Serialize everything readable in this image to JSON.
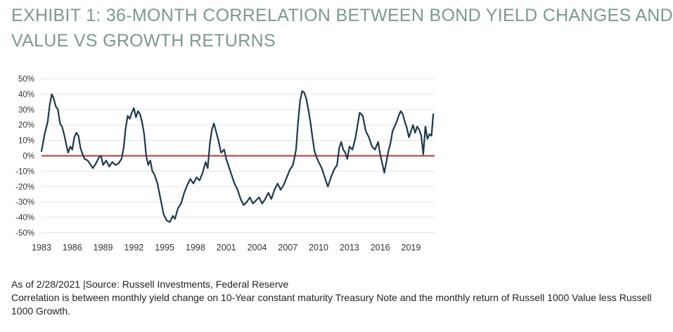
{
  "title": {
    "line1": "EXHIBIT 1: 36-MONTH CORRELATION BETWEEN BOND YIELD CHANGES AND",
    "line2": "VALUE VS GROWTH RETURNS"
  },
  "colors": {
    "title": "#7a9a8c",
    "series": "#1b3a4b",
    "zero_line": "#b03a3a",
    "grid": "#e3e3e3"
  },
  "chart_data": {
    "type": "line",
    "title": "",
    "xlabel": "",
    "ylabel": "",
    "x_start": 1983.0,
    "x_end": 2021.17,
    "xlim": [
      1983.0,
      2021.3
    ],
    "ylim": [
      -50,
      50
    ],
    "grid": true,
    "y_ticks": [
      50,
      40,
      30,
      20,
      10,
      0,
      -10,
      -20,
      -30,
      -40,
      -50
    ],
    "y_tick_labels": [
      "50%",
      "40%",
      "30%",
      "20%",
      "10%",
      "0%",
      "-10%",
      "-20%",
      "-30%",
      "-40%",
      "-50%"
    ],
    "x_ticks": [
      1983,
      1986,
      1989,
      1992,
      1995,
      1998,
      2001,
      2004,
      2007,
      2010,
      2013,
      2016,
      2019
    ],
    "x_tick_labels": [
      "1983",
      "1986",
      "1989",
      "1992",
      "1995",
      "1998",
      "2001",
      "2004",
      "2007",
      "2010",
      "2013",
      "2016",
      "2019"
    ],
    "reference_line": 0,
    "series": [
      {
        "points": [
          [
            1983.0,
            3
          ],
          [
            1983.3,
            14
          ],
          [
            1983.6,
            22
          ],
          [
            1983.8,
            33
          ],
          [
            1984.0,
            40
          ],
          [
            1984.2,
            37
          ],
          [
            1984.4,
            32
          ],
          [
            1984.6,
            30
          ],
          [
            1984.8,
            21
          ],
          [
            1985.0,
            19
          ],
          [
            1985.2,
            14
          ],
          [
            1985.4,
            8
          ],
          [
            1985.6,
            2
          ],
          [
            1985.8,
            6
          ],
          [
            1986.0,
            4
          ],
          [
            1986.2,
            12
          ],
          [
            1986.4,
            15
          ],
          [
            1986.6,
            13
          ],
          [
            1986.8,
            5
          ],
          [
            1987.0,
            1
          ],
          [
            1987.2,
            -2
          ],
          [
            1987.5,
            -3
          ],
          [
            1987.8,
            -6
          ],
          [
            1988.0,
            -8
          ],
          [
            1988.3,
            -5
          ],
          [
            1988.6,
            -1
          ],
          [
            1988.8,
            0
          ],
          [
            1989.0,
            -6
          ],
          [
            1989.3,
            -3
          ],
          [
            1989.6,
            -7
          ],
          [
            1989.9,
            -4
          ],
          [
            1990.2,
            -6
          ],
          [
            1990.5,
            -5
          ],
          [
            1990.8,
            -2
          ],
          [
            1991.0,
            5
          ],
          [
            1991.2,
            18
          ],
          [
            1991.4,
            26
          ],
          [
            1991.6,
            24
          ],
          [
            1991.8,
            28
          ],
          [
            1992.0,
            31
          ],
          [
            1992.2,
            25
          ],
          [
            1992.4,
            29
          ],
          [
            1992.6,
            27
          ],
          [
            1992.8,
            22
          ],
          [
            1993.0,
            14
          ],
          [
            1993.2,
            0
          ],
          [
            1993.4,
            -6
          ],
          [
            1993.6,
            -3
          ],
          [
            1993.8,
            -10
          ],
          [
            1994.0,
            -12
          ],
          [
            1994.3,
            -18
          ],
          [
            1994.6,
            -28
          ],
          [
            1994.9,
            -38
          ],
          [
            1995.2,
            -42
          ],
          [
            1995.5,
            -43
          ],
          [
            1995.8,
            -39
          ],
          [
            1996.0,
            -41
          ],
          [
            1996.3,
            -34
          ],
          [
            1996.6,
            -31
          ],
          [
            1996.9,
            -24
          ],
          [
            1997.2,
            -19
          ],
          [
            1997.5,
            -15
          ],
          [
            1997.8,
            -18
          ],
          [
            1998.1,
            -14
          ],
          [
            1998.4,
            -16
          ],
          [
            1998.7,
            -11
          ],
          [
            1999.0,
            -4
          ],
          [
            1999.2,
            -8
          ],
          [
            1999.4,
            8
          ],
          [
            1999.6,
            17
          ],
          [
            1999.8,
            21
          ],
          [
            2000.0,
            16
          ],
          [
            2000.2,
            11
          ],
          [
            2000.5,
            2
          ],
          [
            2000.8,
            4
          ],
          [
            2001.0,
            -2
          ],
          [
            2001.2,
            -6
          ],
          [
            2001.5,
            -12
          ],
          [
            2001.8,
            -18
          ],
          [
            2002.1,
            -22
          ],
          [
            2002.4,
            -28
          ],
          [
            2002.7,
            -32
          ],
          [
            2003.0,
            -30
          ],
          [
            2003.3,
            -27
          ],
          [
            2003.6,
            -31
          ],
          [
            2003.9,
            -29
          ],
          [
            2004.2,
            -27
          ],
          [
            2004.5,
            -31
          ],
          [
            2004.8,
            -28
          ],
          [
            2005.1,
            -24
          ],
          [
            2005.4,
            -28
          ],
          [
            2005.7,
            -22
          ],
          [
            2006.0,
            -18
          ],
          [
            2006.3,
            -22
          ],
          [
            2006.6,
            -19
          ],
          [
            2006.9,
            -14
          ],
          [
            2007.2,
            -9
          ],
          [
            2007.5,
            -6
          ],
          [
            2007.8,
            4
          ],
          [
            2008.0,
            22
          ],
          [
            2008.2,
            36
          ],
          [
            2008.4,
            42
          ],
          [
            2008.6,
            41
          ],
          [
            2008.8,
            37
          ],
          [
            2009.0,
            30
          ],
          [
            2009.2,
            22
          ],
          [
            2009.4,
            12
          ],
          [
            2009.6,
            3
          ],
          [
            2009.8,
            -1
          ],
          [
            2010.0,
            -4
          ],
          [
            2010.3,
            -8
          ],
          [
            2010.6,
            -14
          ],
          [
            2010.9,
            -20
          ],
          [
            2011.2,
            -14
          ],
          [
            2011.5,
            -9
          ],
          [
            2011.8,
            -6
          ],
          [
            2012.0,
            5
          ],
          [
            2012.2,
            9
          ],
          [
            2012.4,
            4
          ],
          [
            2012.6,
            2
          ],
          [
            2012.8,
            -2
          ],
          [
            2013.0,
            6
          ],
          [
            2013.3,
            4
          ],
          [
            2013.6,
            12
          ],
          [
            2013.8,
            20
          ],
          [
            2014.0,
            28
          ],
          [
            2014.3,
            26
          ],
          [
            2014.6,
            16
          ],
          [
            2014.9,
            12
          ],
          [
            2015.2,
            6
          ],
          [
            2015.5,
            4
          ],
          [
            2015.8,
            9
          ],
          [
            2016.0,
            1
          ],
          [
            2016.2,
            -5
          ],
          [
            2016.4,
            -11
          ],
          [
            2016.6,
            -4
          ],
          [
            2016.8,
            3
          ],
          [
            2017.0,
            8
          ],
          [
            2017.2,
            16
          ],
          [
            2017.4,
            19
          ],
          [
            2017.6,
            22
          ],
          [
            2017.8,
            26
          ],
          [
            2018.0,
            29
          ],
          [
            2018.2,
            27
          ],
          [
            2018.4,
            22
          ],
          [
            2018.6,
            18
          ],
          [
            2018.8,
            12
          ],
          [
            2019.0,
            16
          ],
          [
            2019.2,
            20
          ],
          [
            2019.4,
            15
          ],
          [
            2019.6,
            19
          ],
          [
            2019.8,
            17
          ],
          [
            2020.0,
            13
          ],
          [
            2020.2,
            1
          ],
          [
            2020.4,
            19
          ],
          [
            2020.6,
            11
          ],
          [
            2020.8,
            14
          ],
          [
            2021.0,
            13
          ],
          [
            2021.17,
            27
          ]
        ]
      }
    ]
  },
  "footnote": {
    "line1": "As of 2/28/2021 |Source: Russell Investments, Federal Reserve",
    "line2": "Correlation is between monthly yield change on 10-Year constant maturity Treasury Note and the monthly return of Russell 1000 Value less Russell 1000 Growth."
  }
}
